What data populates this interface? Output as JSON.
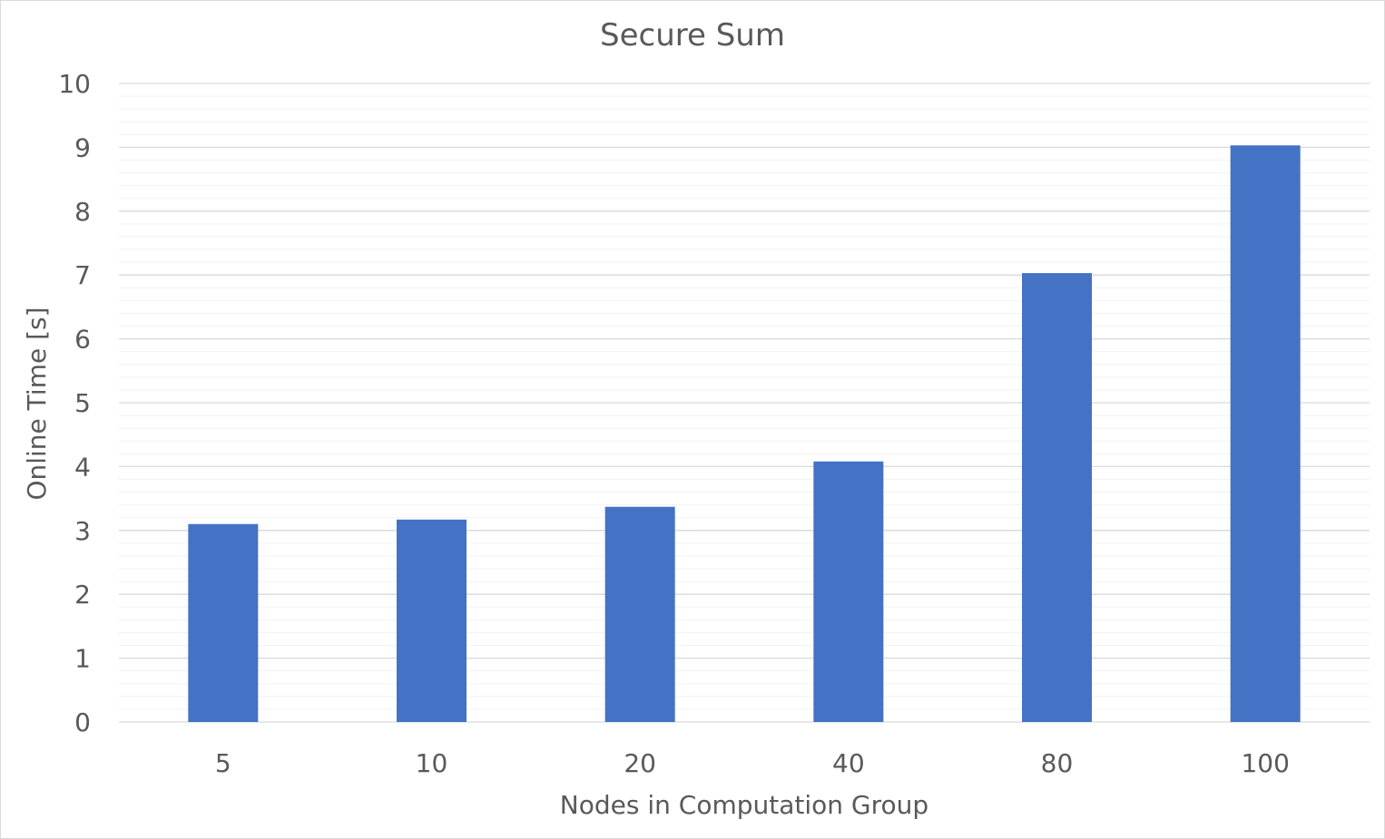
{
  "chart_data": {
    "type": "bar",
    "title": "Secure Sum",
    "xlabel": "Nodes in Computation Group",
    "ylabel": "Online Time [s]",
    "categories": [
      "5",
      "10",
      "20",
      "40",
      "80",
      "100"
    ],
    "values": [
      3.1,
      3.17,
      3.37,
      4.08,
      7.03,
      9.03
    ],
    "ylim": [
      0,
      10
    ],
    "yticks": [
      "0",
      "1",
      "2",
      "3",
      "4",
      "5",
      "6",
      "7",
      "8",
      "9",
      "10"
    ],
    "major_grid": true,
    "minor_grid": true,
    "legend": "none",
    "bar_color": "#4472c4",
    "grid_color": "#d9d9d9",
    "minor_grid_color": "#f2f2f2",
    "text_color": "#595959"
  }
}
